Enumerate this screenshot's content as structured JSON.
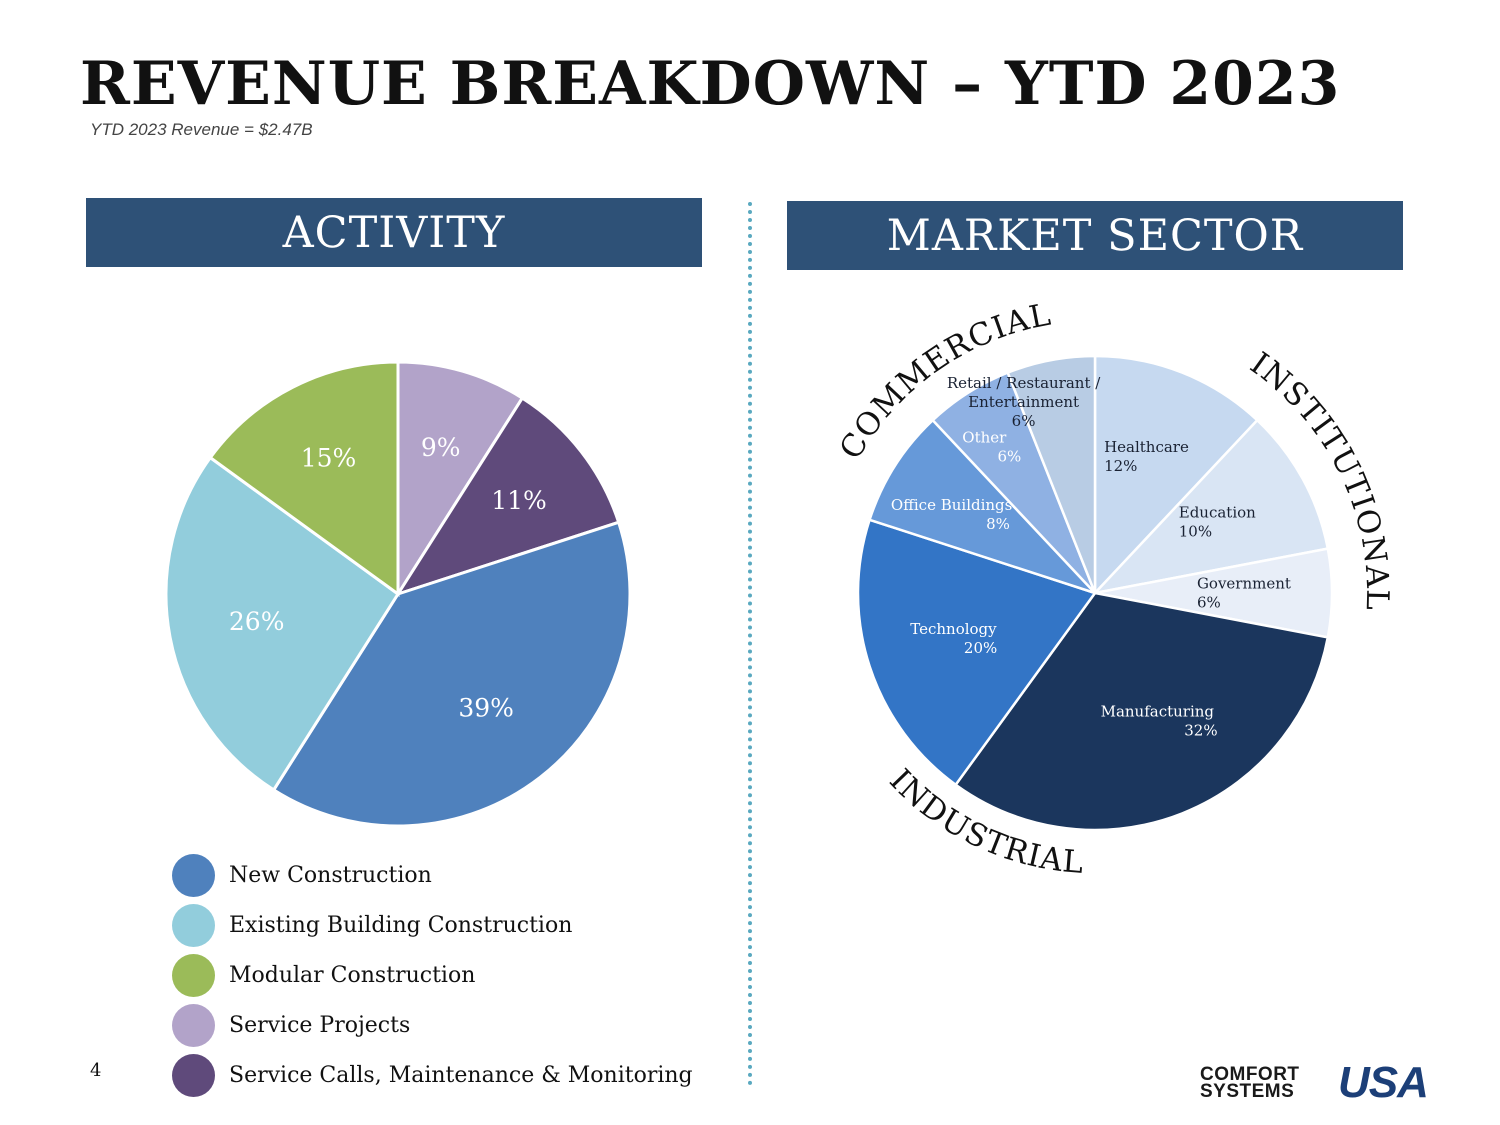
{
  "page": {
    "title": "REVENUE BREAKDOWN – YTD 2023",
    "subtitle": "YTD 2023 Revenue = $2.47B",
    "page_number": "4"
  },
  "colors": {
    "banner": "#2e5177",
    "text_on_dark": "#ffffff",
    "text_on_light": "#1a2233"
  },
  "logo": {
    "line1": "COMFORT",
    "line2": "SYSTEMS",
    "mark": "USA",
    "brand_colors": [
      "#1c3f78",
      "#d8262f"
    ]
  },
  "chart_data": [
    {
      "type": "pie",
      "title": "ACTIVITY",
      "start_angle_deg": 0,
      "direction": "clockwise",
      "categories": [
        "Service Projects",
        "Service Calls, Maintenance & Monitoring",
        "New Construction",
        "Existing Building Construction",
        "Modular Construction"
      ],
      "values": [
        9,
        11,
        39,
        26,
        15
      ],
      "labels": [
        "9%",
        "11%",
        "39%",
        "26%",
        "15%"
      ],
      "colors": [
        "#b2a3c9",
        "#5f4a7b",
        "#4f81bd",
        "#92cddc",
        "#9bbb59"
      ],
      "legend": {
        "placement": "bottom",
        "order": [
          "New Construction",
          "Existing Building Construction",
          "Modular Construction",
          "Service Projects",
          "Service Calls, Maintenance & Monitoring"
        ],
        "colors": [
          "#4f81bd",
          "#92cddc",
          "#9bbb59",
          "#b2a3c9",
          "#5f4a7b"
        ]
      }
    },
    {
      "type": "pie",
      "title": "MARKET SECTOR",
      "start_angle_deg": 0,
      "direction": "clockwise",
      "categories": [
        "Healthcare",
        "Education",
        "Government",
        "Manufacturing",
        "Technology",
        "Office Buildings",
        "Other",
        "Retail / Restaurant / Entertainment"
      ],
      "label_lines": [
        [
          "Healthcare",
          "12%"
        ],
        [
          "Education",
          "10%"
        ],
        [
          "Government",
          "6%"
        ],
        [
          "Manufacturing",
          "32%"
        ],
        [
          "Technology",
          "20%"
        ],
        [
          "Office Buildings",
          "8%"
        ],
        [
          "Other",
          "6%"
        ],
        [
          "Retail / Restaurant /",
          "Entertainment",
          "6%"
        ]
      ],
      "values": [
        12,
        10,
        6,
        32,
        20,
        8,
        6,
        6
      ],
      "colors": [
        "#c6d9f0",
        "#d9e5f4",
        "#e8eef8",
        "#1b365d",
        "#3375c6",
        "#6699d9",
        "#8fb1e3",
        "#b8cce4"
      ],
      "group_labels": [
        "INSTITUTIONAL",
        "INDUSTRIAL",
        "COMMERCIAL"
      ]
    }
  ]
}
